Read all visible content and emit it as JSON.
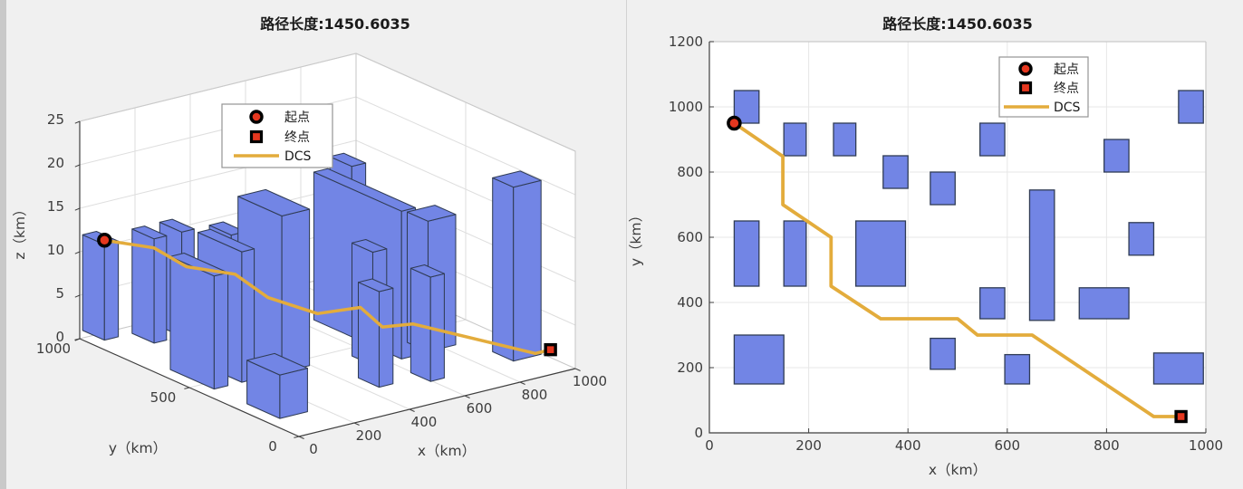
{
  "figure": {
    "background": "#F0F0F0",
    "plot_background": "#FFFFFF"
  },
  "colors": {
    "obstacle_fill": "#7285E5",
    "obstacle_edge": "#303C55",
    "path": "#E3AC3C",
    "marker_fill": "#E5371F",
    "marker_edge": "#000000",
    "grid_2d": "#E7E7E7",
    "grid_3d": "#DEDEDE",
    "wall_edge": "#C9C9C9",
    "axis": "#3F3F3F",
    "tick_text": "#3C3C3C",
    "legend_border": "#949494"
  },
  "chart_data": [
    {
      "type": "3d-building-path",
      "title": "路径长度:1450.6035",
      "xlabel": "x（km）",
      "ylabel": "y（km）",
      "zlabel": "z（km）",
      "xlim": [
        0,
        1000
      ],
      "ylim": [
        0,
        1000
      ],
      "zlim": [
        0,
        25
      ],
      "xticks": [
        0,
        200,
        400,
        600,
        800,
        1000
      ],
      "yticks": [
        0,
        500,
        1000
      ],
      "zticks": [
        0,
        5,
        10,
        15,
        20,
        25
      ],
      "view": "MATLAB default 3-D view (az -37.5, el 30)",
      "legend": [
        {
          "label": "起点",
          "marker": "red-circle"
        },
        {
          "label": "终点",
          "marker": "red-square"
        },
        {
          "label": "DCS",
          "marker": "yellow-line"
        }
      ],
      "buildings": [
        {
          "x": [
            50,
            100
          ],
          "y": [
            950,
            1050
          ],
          "h": 11
        },
        {
          "x": [
            150,
            195
          ],
          "y": [
            850,
            950
          ],
          "h": 12
        },
        {
          "x": [
            250,
            295
          ],
          "y": [
            850,
            950
          ],
          "h": 12
        },
        {
          "x": [
            350,
            400
          ],
          "y": [
            750,
            850
          ],
          "h": 12
        },
        {
          "x": [
            445,
            495
          ],
          "y": [
            700,
            800
          ],
          "h": 8
        },
        {
          "x": [
            545,
            595
          ],
          "y": [
            850,
            950
          ],
          "h": 10
        },
        {
          "x": [
            795,
            845
          ],
          "y": [
            800,
            900
          ],
          "h": 10
        },
        {
          "x": [
            945,
            995
          ],
          "y": [
            950,
            1050
          ],
          "h": 13
        },
        {
          "x": [
            50,
            100
          ],
          "y": [
            450,
            650
          ],
          "h": 13
        },
        {
          "x": [
            150,
            195
          ],
          "y": [
            450,
            650
          ],
          "h": 15
        },
        {
          "x": [
            295,
            395
          ],
          "y": [
            450,
            650
          ],
          "h": 18
        },
        {
          "x": [
            50,
            150
          ],
          "y": [
            150,
            300
          ],
          "h": 5
        },
        {
          "x": [
            445,
            495
          ],
          "y": [
            195,
            290
          ],
          "h": 11
        },
        {
          "x": [
            845,
            895
          ],
          "y": [
            545,
            645
          ],
          "h": 11
        },
        {
          "x": [
            545,
            595
          ],
          "y": [
            350,
            445
          ],
          "h": 13
        },
        {
          "x": [
            645,
            695
          ],
          "y": [
            345,
            745
          ],
          "h": 17
        },
        {
          "x": [
            745,
            845
          ],
          "y": [
            350,
            445
          ],
          "h": 15
        },
        {
          "x": [
            595,
            645
          ],
          "y": [
            150,
            240
          ],
          "h": 12
        },
        {
          "x": [
            895,
            995
          ],
          "y": [
            150,
            245
          ],
          "h": 20
        }
      ],
      "path": [
        [
          50,
          950,
          11.5
        ],
        [
          148,
          848,
          11
        ],
        [
          148,
          700,
          10.5
        ],
        [
          245,
          600,
          10
        ],
        [
          245,
          450,
          9
        ],
        [
          345,
          350,
          7.5
        ],
        [
          500,
          350,
          7
        ],
        [
          540,
          300,
          5
        ],
        [
          650,
          300,
          4.5
        ],
        [
          895,
          50,
          2
        ],
        [
          950,
          50,
          2
        ]
      ],
      "start": {
        "x": 50,
        "y": 950,
        "z": 11.5,
        "label": "起点"
      },
      "end": {
        "x": 950,
        "y": 50,
        "z": 2,
        "label": "终点"
      }
    },
    {
      "type": "2d-top-view",
      "title": "路径长度:1450.6035",
      "xlabel": "x（km）",
      "ylabel": "y（km）",
      "xlim": [
        0,
        1000
      ],
      "ylim": [
        0,
        1200
      ],
      "xticks": [
        0,
        200,
        400,
        600,
        800,
        1000
      ],
      "yticks": [
        0,
        200,
        400,
        600,
        800,
        1000,
        1200
      ],
      "grid": true,
      "legend": [
        {
          "label": "起点",
          "marker": "red-circle"
        },
        {
          "label": "终点",
          "marker": "red-square"
        },
        {
          "label": "DCS",
          "marker": "yellow-line"
        }
      ],
      "obstacles": [
        {
          "x": [
            50,
            100
          ],
          "y": [
            950,
            1050
          ]
        },
        {
          "x": [
            150,
            195
          ],
          "y": [
            850,
            950
          ]
        },
        {
          "x": [
            250,
            295
          ],
          "y": [
            850,
            950
          ]
        },
        {
          "x": [
            350,
            400
          ],
          "y": [
            750,
            850
          ]
        },
        {
          "x": [
            445,
            495
          ],
          "y": [
            700,
            800
          ]
        },
        {
          "x": [
            545,
            595
          ],
          "y": [
            850,
            950
          ]
        },
        {
          "x": [
            795,
            845
          ],
          "y": [
            800,
            900
          ]
        },
        {
          "x": [
            945,
            995
          ],
          "y": [
            950,
            1050
          ]
        },
        {
          "x": [
            50,
            100
          ],
          "y": [
            450,
            650
          ]
        },
        {
          "x": [
            150,
            195
          ],
          "y": [
            450,
            650
          ]
        },
        {
          "x": [
            295,
            395
          ],
          "y": [
            450,
            650
          ]
        },
        {
          "x": [
            50,
            150
          ],
          "y": [
            150,
            300
          ]
        },
        {
          "x": [
            445,
            495
          ],
          "y": [
            195,
            290
          ]
        },
        {
          "x": [
            845,
            895
          ],
          "y": [
            545,
            645
          ]
        },
        {
          "x": [
            545,
            595
          ],
          "y": [
            350,
            445
          ]
        },
        {
          "x": [
            645,
            695
          ],
          "y": [
            345,
            745
          ]
        },
        {
          "x": [
            745,
            845
          ],
          "y": [
            350,
            445
          ]
        },
        {
          "x": [
            595,
            645
          ],
          "y": [
            150,
            240
          ]
        },
        {
          "x": [
            895,
            995
          ],
          "y": [
            150,
            245
          ]
        }
      ],
      "path": [
        [
          50,
          950
        ],
        [
          148,
          848
        ],
        [
          148,
          700
        ],
        [
          245,
          600
        ],
        [
          245,
          450
        ],
        [
          345,
          350
        ],
        [
          500,
          350
        ],
        [
          540,
          300
        ],
        [
          650,
          300
        ],
        [
          895,
          50
        ],
        [
          950,
          50
        ]
      ],
      "start": {
        "x": 50,
        "y": 950,
        "label": "起点"
      },
      "end": {
        "x": 950,
        "y": 50,
        "label": "终点"
      }
    }
  ]
}
